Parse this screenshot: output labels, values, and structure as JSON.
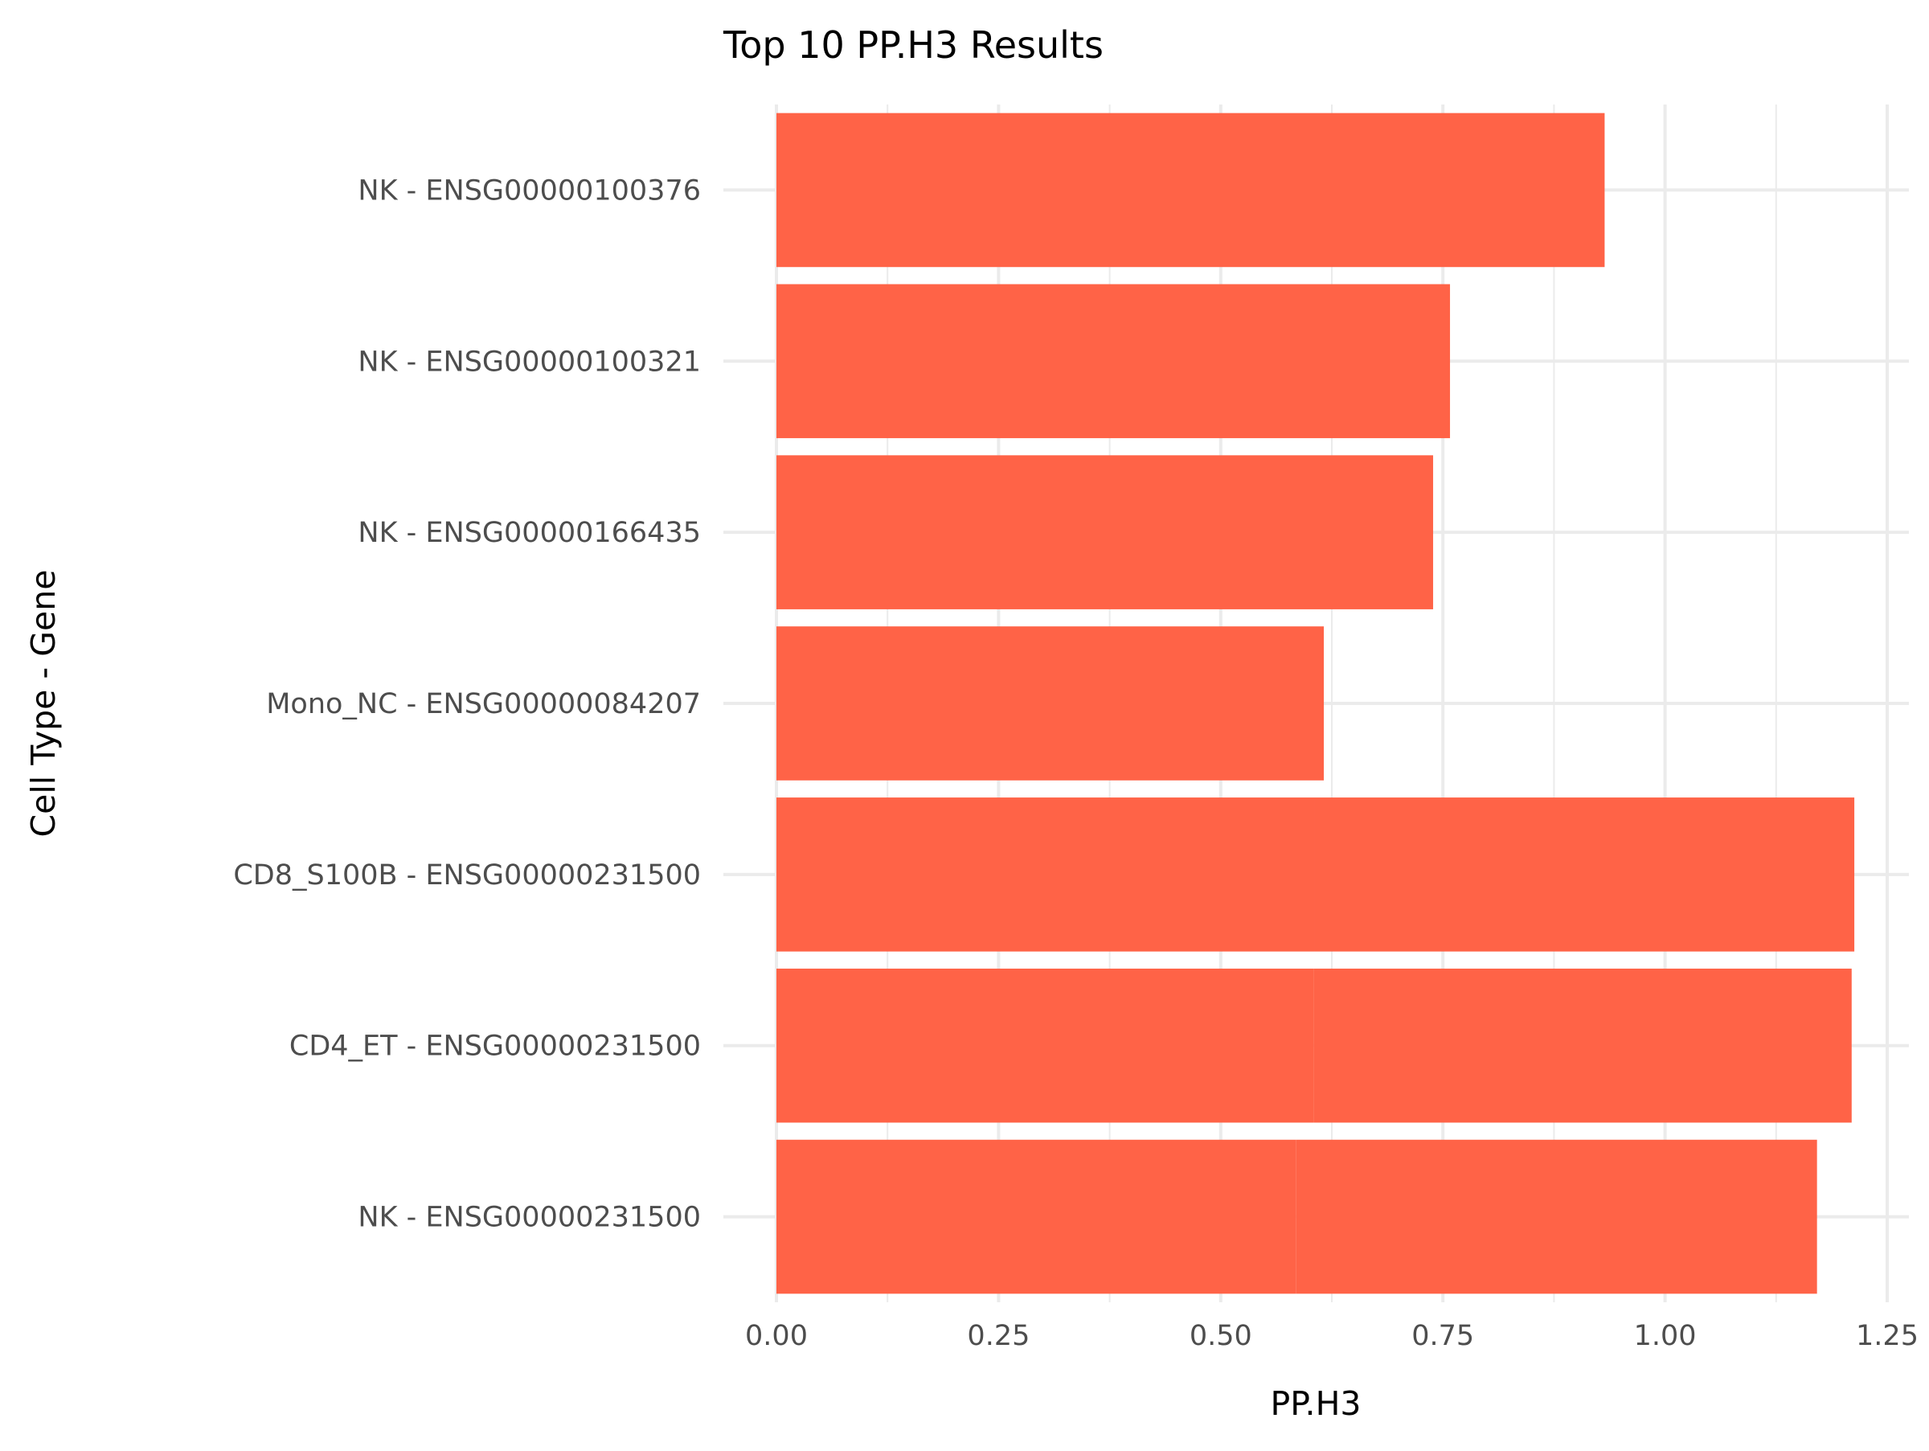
{
  "chart_data": {
    "type": "bar",
    "orientation": "horizontal",
    "title": "Top 10 PP.H3 Results",
    "xlabel": "PP.H3",
    "ylabel": "Cell Type - Gene",
    "xlim": [
      0,
      1.25
    ],
    "x_ticks": [
      "0.00",
      "0.25",
      "0.50",
      "0.75",
      "1.00",
      "1.25"
    ],
    "grid": true,
    "bar_color": "#FF6347",
    "categories": [
      "NK - ENSG00000100376",
      "NK - ENSG00000100321",
      "NK - ENSG00000166435",
      "Mono_NC - ENSG00000084207",
      "CD8_S100B - ENSG00000231500",
      "CD4_ET - ENSG00000231500",
      "NK - ENSG00000231500"
    ],
    "stacked_segments": [
      [
        0.932
      ],
      [
        0.758
      ],
      [
        0.739
      ],
      [
        0.616
      ],
      [
        0.606,
        0.607
      ],
      [
        0.605,
        0.605
      ],
      [
        0.585,
        0.586
      ]
    ],
    "values": [
      0.932,
      0.758,
      0.739,
      0.616,
      1.213,
      1.21,
      1.171
    ]
  }
}
